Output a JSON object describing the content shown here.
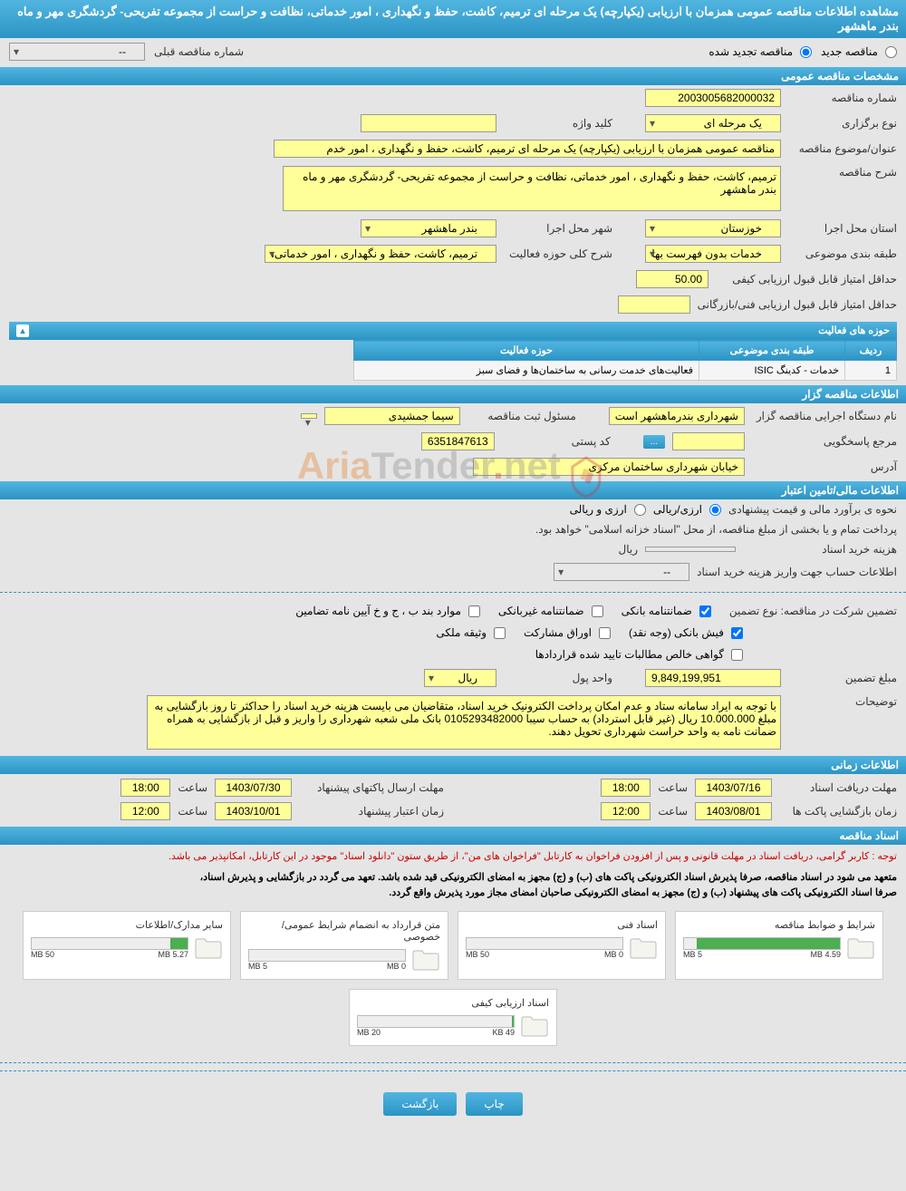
{
  "header": {
    "title": "مشاهده اطلاعات مناقصه عمومی همزمان با ارزیابی (یکپارچه) یک مرحله ای ترمیم، کاشت، حفظ و نگهداری ، امور خدماتی، نظافت و حراست از مجموعه تفریحی- گردشگری مهر و ماه بندر ماهشهر"
  },
  "radio": {
    "new_tender_label": "مناقصه جدید",
    "renewed_tender_label": "مناقصه تجدید شده"
  },
  "prev_tender": {
    "label": "شماره مناقصه قبلی",
    "value": "--"
  },
  "sections": {
    "general": "مشخصات مناقصه عمومی",
    "organizer": "اطلاعات مناقصه گزار",
    "financial": "اطلاعات مالی/تامین اعتبار",
    "time": "اطلاعات زمانی",
    "docs": "اسناد مناقصه"
  },
  "general": {
    "tender_no_label": "شماره مناقصه",
    "tender_no": "2003005682000032",
    "keyword_label": "کلید واژه",
    "keyword": "",
    "type_label": "نوع برگزاری",
    "type": "یک مرحله ای",
    "subject_label": "عنوان/موضوع مناقصه",
    "subject": "مناقصه عمومی همزمان با ارزیابی (یکپارچه) یک مرحله ای ترمیم، کاشت، حفظ و نگهداری ، امور خدم",
    "desc_label": "شرح مناقصه",
    "desc": "ترمیم، کاشت، حفظ و نگهداری ، امور خدماتی، نظافت و حراست از مجموعه تفریحی- گردشگری مهر و ماه بندر ماهشهر",
    "province_label": "استان محل اجرا",
    "province": "خوزستان",
    "city_label": "شهر محل اجرا",
    "city": "بندر ماهشهر",
    "category_label": "طبقه بندی موضوعی",
    "category": "خدمات بدون فهرست بها",
    "activity_scope_label": "شرح کلی حوزه فعالیت",
    "activity_scope": "ترمیم، کاشت، حفظ و نگهداری ، امور خدماتی،",
    "min_qual_label": "حداقل امتیاز قابل قبول ارزیابی کیفی",
    "min_qual": "50.00",
    "min_tech_label": "حداقل امتیاز قابل قبول ارزیابی فنی/بازرگانی",
    "min_tech": ""
  },
  "activity_table": {
    "title": "حوزه های فعالیت",
    "headers": {
      "row": "ردیف",
      "category": "طبقه بندی موضوعی",
      "scope": "حوزه فعالیت"
    },
    "rows": [
      {
        "no": "1",
        "cat": "خدمات - کدینگ ISIC",
        "scope": "فعالیت‌های خدمت رسانی به ساختمان‌ها و فضای سبز"
      }
    ]
  },
  "organizer": {
    "exec_label": "نام دستگاه اجرایی مناقصه گزار",
    "exec": "شهرداری بندرماهشهر است",
    "registrar_label": "مسئول ثبت مناقصه",
    "registrar": "سیما جمشیدی",
    "contact_label": "مرجع پاسخگویی",
    "contact": "",
    "postal_label": "کد پستی",
    "postal": "6351847613",
    "address_label": "آدرس",
    "address": "خیابان شهرداری ساختمان مرکزی"
  },
  "financial": {
    "estimate_label": "نحوه ی برآورد مالی و قیمت پیشنهادی",
    "rial_option": "ارزی/ریالی",
    "currency_option": "ارزی و ریالی",
    "payment_note": "پرداخت تمام و یا بخشی از مبلغ مناقصه، از محل \"اسناد خزانه اسلامی\" خواهد بود.",
    "doc_cost_label": "هزینه خرید اسناد",
    "doc_cost": "",
    "doc_cost_unit": "ریال",
    "account_label": "اطلاعات حساب جهت واریز هزینه خرید اسناد",
    "account": "--",
    "guarantee_type_label": "تضمین شرکت در مناقصه:   نوع تضمین",
    "cb_bank_guarantee": "ضمانتنامه بانکی",
    "cb_nonbank_guarantee": "ضمانتنامه غیربانکی",
    "cb_pledge_cases": "موارد بند ب ، ج و خ آیین نامه تضامین",
    "cb_cash": "فیش بانکی (وجه نقد)",
    "cb_bonds": "اوراق مشارکت",
    "cb_property": "وثیقه ملکی",
    "cb_net": "گواهی خالص مطالبات تایید شده قراردادها",
    "guarantee_amount_label": "مبلغ تضمین",
    "guarantee_amount": "9,849,199,951",
    "currency_unit_label": "واحد پول",
    "currency_unit": "ریال",
    "notes_label": "توضیحات",
    "notes": "با توجه به ایراد سامانه ستاد و عدم امکان پرداخت الکترونیک خرید اسناد، متقاضیان می بایست هزینه خرید اسناد را حداکثر تا روز بازگشایی به مبلغ 10.000.000 ریال (غیر قابل استرداد) به حساب سیبا 0105293482000 بانک ملی شعبه شهرداری را واریز و قبل از بازگشایی به همراه ضمانت نامه به واحد حراست شهرداری تحویل دهند."
  },
  "time": {
    "doc_deadline_label": "مهلت دریافت اسناد",
    "doc_deadline_date": "1403/07/16",
    "doc_deadline_time": "18:00",
    "proposal_deadline_label": "مهلت ارسال پاکتهای پیشنهاد",
    "proposal_deadline_date": "1403/07/30",
    "proposal_deadline_time": "18:00",
    "opening_label": "زمان بازگشایی پاکت ها",
    "opening_date": "1403/08/01",
    "opening_time": "12:00",
    "validity_label": "زمان اعتبار پیشنهاد",
    "validity_date": "1403/10/01",
    "validity_time": "12:00",
    "time_label": "ساعت"
  },
  "docs": {
    "note_red": "توجه : کاربر گرامی، دریافت اسناد در مهلت قانونی و پس از افزودن فراخوان به کارتابل \"فراخوان های من\"، از طریق ستون \"دانلود اسناد\" موجود در این کارتابل، امکانپذیر می باشد.",
    "note_black1": "متعهد می شود در اسناد مناقصه، صرفا پذیرش اسناد الکترونیکی پاکت های (ب) و (ج) مجهز به امضای الکترونیکی قید شده باشد. تعهد می گردد در بازگشایی و پذیرش اسناد،",
    "note_black2": "صرفا اسناد الکترونیکی پاکت های پیشنهاد (ب) و (ج) مجهز به امضای الکترونیکی صاحبان امضای مجاز مورد پذیرش واقع گردد.",
    "items": [
      {
        "title": "شرایط و ضوابط مناقصه",
        "used": "4.59 MB",
        "total": "5 MB",
        "pct": 92
      },
      {
        "title": "اسناد فنی",
        "used": "0 MB",
        "total": "50 MB",
        "pct": 0
      },
      {
        "title": "متن قرارداد به انضمام شرایط عمومی/خصوصی",
        "used": "0 MB",
        "total": "5 MB",
        "pct": 0
      },
      {
        "title": "سایر مدارک/اطلاعات",
        "used": "5.27 MB",
        "total": "50 MB",
        "pct": 11
      },
      {
        "title": "اسناد ارزیابی کیفی",
        "used": "49 KB",
        "total": "20 MB",
        "pct": 1
      }
    ]
  },
  "buttons": {
    "print": "چاپ",
    "back": "بازگشت",
    "dots": "..."
  },
  "colors": {
    "header_bg": "#2b94c4",
    "field_bg": "#ffff99",
    "red": "#cc0000",
    "green": "#4caf50"
  },
  "watermark": "AriaTender.net"
}
